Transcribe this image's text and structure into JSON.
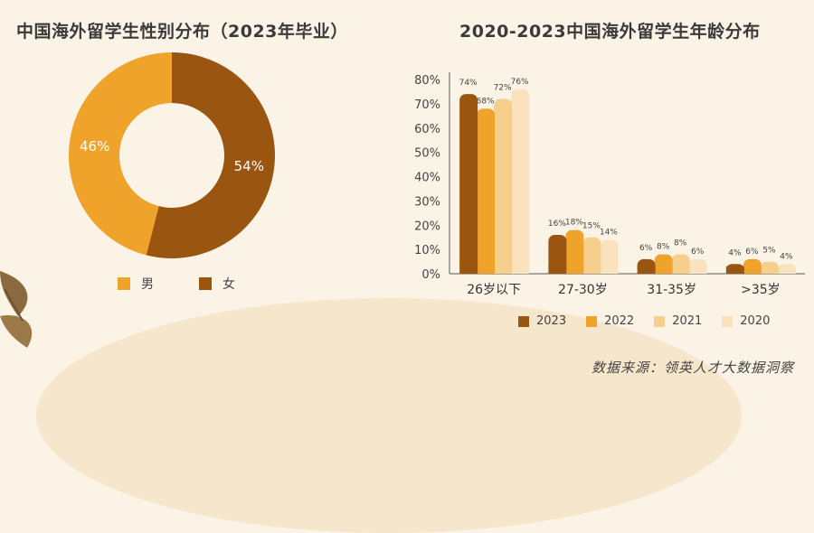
{
  "left_title": "中国海外留学生性别分布（2023年毕业）",
  "right_title": "2020-2023中国海外留学生年龄分布",
  "source": "数据来源：领英人才大数据洞察",
  "colors": {
    "2023": "#9a5610",
    "2022": "#f0a32a",
    "2021": "#f6cf8c",
    "2020": "#f9e2bd",
    "male": "#f0a32a",
    "female": "#9a5610",
    "background": "#fbf3e6",
    "axis": "#555555"
  },
  "chart_data": [
    {
      "type": "pie",
      "variant": "donut",
      "title": "中国海外留学生性别分布（2023年毕业）",
      "labels": [
        "男",
        "女"
      ],
      "values": [
        46,
        54
      ],
      "value_labels": [
        "46%",
        "54%"
      ],
      "legend_position": "bottom"
    },
    {
      "type": "bar",
      "title": "2020-2023中国海外留学生年龄分布",
      "categories": [
        "26岁以下",
        "27-30岁",
        "31-35岁",
        ">35岁"
      ],
      "series": [
        {
          "name": "2023",
          "values": [
            74,
            16,
            6,
            4
          ]
        },
        {
          "name": "2022",
          "values": [
            68,
            18,
            8,
            6
          ]
        },
        {
          "name": "2021",
          "values": [
            72,
            15,
            8,
            5
          ]
        },
        {
          "name": "2020",
          "values": [
            76,
            14,
            6,
            4
          ]
        }
      ],
      "ylim": [
        0,
        80
      ],
      "yticks": [
        "0%",
        "10%",
        "20%",
        "30%",
        "40%",
        "50%",
        "60%",
        "70%",
        "80%"
      ],
      "value_suffix": "%",
      "grid": false,
      "legend_position": "bottom"
    }
  ]
}
